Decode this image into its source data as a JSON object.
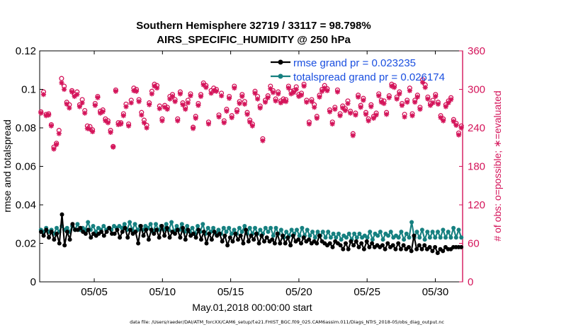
{
  "chart_data": {
    "type": "line",
    "title": "Southern Hemisphere 32719 / 33117 = 98.798%",
    "subtitle": "AIRS_SPECIFIC_HUMIDITY @ 250 hPa",
    "xlabel": "May.01,2018 00:00:00 start",
    "ylabel_left": "rmse and totalspread",
    "ylabel_right": "# of obs: o=possible; ∗=evaluated",
    "footnote": "data file: /Users/raeder/DAI/ATM_forcXX/CAM6_setup/f.e21.FHIST_BGC.f09_025.CAM6assim.011/Diags_NTrS_2018-05/obs_diag_output.nc",
    "x_ticks": [
      "05/05",
      "05/10",
      "05/15",
      "05/20",
      "05/25",
      "05/30"
    ],
    "x_tick_days": [
      5,
      10,
      15,
      20,
      25,
      30
    ],
    "xlim": [
      1,
      32
    ],
    "ylim_left": [
      0,
      0.12
    ],
    "yticks_left": [
      "0",
      "0.02",
      "0.04",
      "0.06",
      "0.08",
      "0.1",
      "0.12"
    ],
    "ylim_right": [
      0,
      360
    ],
    "yticks_right": [
      "0",
      "60",
      "120",
      "180",
      "240",
      "300",
      "360"
    ],
    "colors": {
      "rmse": "#000000",
      "totalspread": "#168080",
      "obs": "#d4145a",
      "legend_text": "#1a4fe0"
    },
    "series": [
      {
        "name": "rmse grand pr = 0.023235",
        "axis": "left",
        "values": [
          0.026,
          0.024,
          0.027,
          0.023,
          0.026,
          0.022,
          0.025,
          0.02,
          0.035,
          0.019,
          0.026,
          0.022,
          0.03,
          0.027,
          0.027,
          0.028,
          0.026,
          0.025,
          0.027,
          0.023,
          0.025,
          0.024,
          0.025,
          0.026,
          0.024,
          0.026,
          0.028,
          0.025,
          0.025,
          0.027,
          0.023,
          0.026,
          0.028,
          0.023,
          0.027,
          0.025,
          0.026,
          0.02,
          0.029,
          0.024,
          0.027,
          0.022,
          0.027,
          0.025,
          0.027,
          0.023,
          0.029,
          0.024,
          0.028,
          0.023,
          0.026,
          0.025,
          0.027,
          0.023,
          0.028,
          0.022,
          0.027,
          0.024,
          0.025,
          0.023,
          0.027,
          0.022,
          0.026,
          0.02,
          0.025,
          0.022,
          0.026,
          0.024,
          0.025,
          0.021,
          0.024,
          0.019,
          0.023,
          0.021,
          0.025,
          0.022,
          0.024,
          0.02,
          0.027,
          0.021,
          0.024,
          0.022,
          0.025,
          0.02,
          0.024,
          0.021,
          0.023,
          0.021,
          0.022,
          0.02,
          0.025,
          0.02,
          0.024,
          0.02,
          0.023,
          0.019,
          0.024,
          0.021,
          0.022,
          0.02,
          0.023,
          0.021,
          0.022,
          0.02,
          0.021,
          0.02,
          0.024,
          0.021,
          0.02,
          0.019,
          0.02,
          0.018,
          0.021,
          0.02,
          0.019,
          0.017,
          0.02,
          0.017,
          0.021,
          0.019,
          0.021,
          0.018,
          0.02,
          0.017,
          0.021,
          0.018,
          0.02,
          0.018,
          0.019,
          0.018,
          0.019,
          0.017,
          0.02,
          0.018,
          0.019,
          0.017,
          0.02,
          0.017,
          0.019,
          0.017,
          0.018,
          0.016,
          0.024,
          0.017,
          0.019,
          0.017,
          0.019,
          0.017,
          0.018,
          0.016,
          0.018,
          0.015,
          0.017,
          0.016,
          0.018,
          0.017,
          0.017,
          0.018,
          0.018,
          0.018,
          0.018
        ]
      },
      {
        "name": "totalspread grand pr = 0.026174",
        "axis": "left",
        "values": [
          0.027,
          0.026,
          0.028,
          0.026,
          0.027,
          0.025,
          0.028,
          0.026,
          0.029,
          0.027,
          0.028,
          0.026,
          0.029,
          0.027,
          0.03,
          0.027,
          0.028,
          0.027,
          0.031,
          0.027,
          0.029,
          0.026,
          0.028,
          0.027,
          0.029,
          0.027,
          0.028,
          0.027,
          0.029,
          0.028,
          0.029,
          0.028,
          0.03,
          0.027,
          0.031,
          0.027,
          0.03,
          0.027,
          0.029,
          0.027,
          0.029,
          0.028,
          0.03,
          0.026,
          0.03,
          0.027,
          0.029,
          0.027,
          0.03,
          0.027,
          0.031,
          0.026,
          0.029,
          0.027,
          0.03,
          0.026,
          0.029,
          0.026,
          0.028,
          0.025,
          0.029,
          0.026,
          0.03,
          0.025,
          0.028,
          0.026,
          0.028,
          0.025,
          0.027,
          0.025,
          0.028,
          0.026,
          0.028,
          0.025,
          0.027,
          0.025,
          0.028,
          0.026,
          0.029,
          0.025,
          0.028,
          0.025,
          0.028,
          0.025,
          0.027,
          0.025,
          0.028,
          0.026,
          0.028,
          0.024,
          0.028,
          0.025,
          0.027,
          0.023,
          0.026,
          0.024,
          0.027,
          0.025,
          0.027,
          0.024,
          0.028,
          0.024,
          0.027,
          0.024,
          0.026,
          0.023,
          0.026,
          0.024,
          0.026,
          0.023,
          0.026,
          0.023,
          0.025,
          0.023,
          0.025,
          0.022,
          0.024,
          0.023,
          0.025,
          0.022,
          0.025,
          0.023,
          0.025,
          0.023,
          0.024,
          0.023,
          0.026,
          0.022,
          0.025,
          0.024,
          0.026,
          0.022,
          0.025,
          0.024,
          0.026,
          0.023,
          0.024,
          0.023,
          0.026,
          0.022,
          0.025,
          0.023,
          0.031,
          0.023,
          0.026,
          0.023,
          0.027,
          0.022,
          0.026,
          0.023,
          0.026,
          0.023,
          0.026,
          0.023,
          0.027,
          0.023,
          0.026,
          0.023,
          0.028,
          0.023,
          0.027,
          0.023
        ]
      },
      {
        "name": "possible",
        "axis": "right",
        "values": [
          265,
          296,
          261,
          262,
          245,
          210,
          216,
          236,
          317,
          305,
          280,
          276,
          298,
          292,
          296,
          276,
          284,
          267,
          243,
          242,
          237,
          278,
          289,
          266,
          268,
          254,
          251,
          236,
          211,
          299,
          248,
          248,
          262,
          277,
          246,
          283,
          302,
          300,
          284,
          264,
          252,
          244,
          279,
          297,
          308,
          306,
          274,
          254,
          275,
          272,
          289,
          292,
          284,
          254,
          296,
          279,
          272,
          283,
          293,
          241,
          258,
          278,
          292,
          310,
          306,
          249,
          298,
          302,
          300,
          260,
          294,
          251,
          269,
          289,
          259,
          305,
          268,
          281,
          292,
          281,
          264,
          252,
          246,
          297,
          289,
          274,
          223,
          283,
          290,
          305,
          298,
          285,
          296,
          282,
          285,
          284,
          305,
          297,
          298,
          304,
          292,
          294,
          308,
          283,
          249,
          284,
          276,
          258,
          291,
          300,
          306,
          301,
          268,
          249,
          272,
          299,
          262,
          274,
          270,
          282,
          266,
          231,
          263,
          291,
          275,
          286,
          264,
          254,
          276,
          258,
          263,
          293,
          283,
          282,
          264,
          290,
          308,
          306,
          288,
          296,
          278,
          261,
          283,
          302,
          262,
          283,
          291,
          272,
          315,
          307,
          288,
          278,
          283,
          292,
          280,
          259,
          254,
          276,
          282,
          287,
          253,
          247,
          232,
          243
        ]
      },
      {
        "name": "evaluated",
        "axis": "right",
        "values": [
          263,
          292,
          259,
          260,
          243,
          207,
          214,
          231,
          310,
          300,
          277,
          271,
          296,
          289,
          292,
          273,
          279,
          263,
          239,
          238,
          234,
          275,
          287,
          263,
          265,
          251,
          248,
          233,
          210,
          297,
          245,
          246,
          259,
          273,
          243,
          279,
          298,
          297,
          281,
          260,
          248,
          240,
          276,
          293,
          305,
          302,
          270,
          251,
          272,
          269,
          285,
          289,
          281,
          251,
          293,
          276,
          269,
          279,
          290,
          239,
          255,
          275,
          289,
          307,
          303,
          246,
          294,
          298,
          297,
          257,
          290,
          248,
          266,
          286,
          256,
          302,
          265,
          278,
          289,
          277,
          261,
          249,
          243,
          294,
          285,
          271,
          220,
          280,
          287,
          301,
          295,
          282,
          293,
          279,
          282,
          281,
          302,
          293,
          295,
          300,
          289,
          291,
          305,
          280,
          246,
          281,
          272,
          255,
          288,
          297,
          302,
          298,
          265,
          246,
          269,
          296,
          259,
          271,
          267,
          278,
          263,
          228,
          260,
          288,
          272,
          283,
          261,
          251,
          273,
          255,
          260,
          290,
          280,
          278,
          261,
          287,
          305,
          303,
          285,
          293,
          275,
          257,
          280,
          298,
          259,
          280,
          288,
          269,
          311,
          303,
          285,
          275,
          279,
          289,
          277,
          256,
          251,
          273,
          279,
          284,
          250,
          244,
          229,
          240
        ]
      }
    ]
  }
}
